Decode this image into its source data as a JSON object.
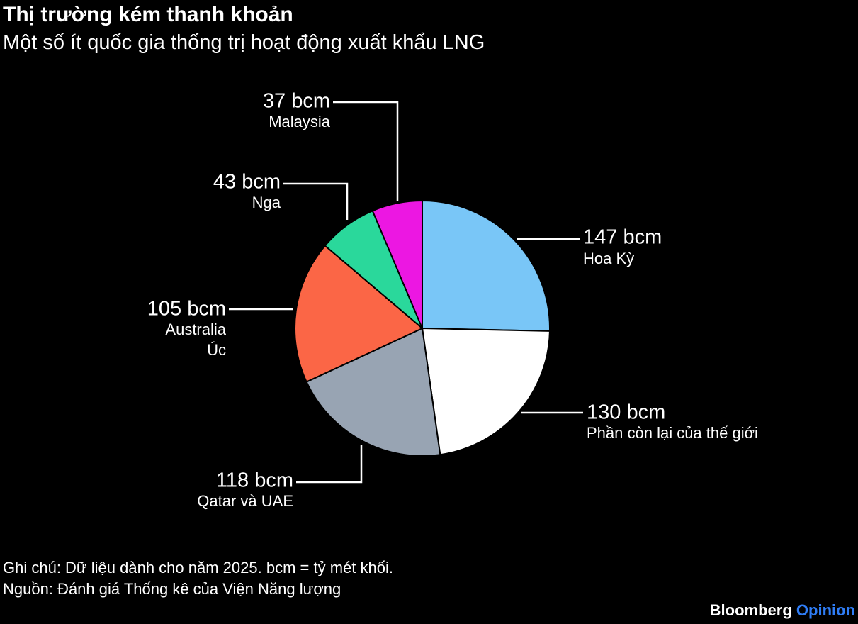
{
  "header": {
    "title": "Thị trường kém thanh khoản",
    "subtitle": "Một số ít quốc gia thống trị hoạt động xuất khẩu LNG"
  },
  "chart_data": {
    "type": "pie",
    "title": "Thị trường kém thanh khoản",
    "subtitle": "Một số ít quốc gia thống trị hoạt động xuất khẩu LNG",
    "unit": "bcm",
    "slices": [
      {
        "name": "Hoa Kỳ",
        "value": 147,
        "label": "147 bcm",
        "names": [
          "Hoa Kỳ"
        ],
        "color": "#79c6f7"
      },
      {
        "name": "Phần còn lại của thế giới",
        "value": 130,
        "label": "130 bcm",
        "names": [
          "Phần còn lại của thế giới"
        ],
        "color": "#ffffff"
      },
      {
        "name": "Qatar và UAE",
        "value": 118,
        "label": "118 bcm",
        "names": [
          "Qatar và UAE"
        ],
        "color": "#98a4b3"
      },
      {
        "name": "Australia Úc",
        "value": 105,
        "label": "105 bcm",
        "names": [
          "Australia",
          "Úc"
        ],
        "color": "#fb6646"
      },
      {
        "name": "Nga",
        "value": 43,
        "label": "43 bcm",
        "names": [
          "Nga"
        ],
        "color": "#2ad89b"
      },
      {
        "name": "Malaysia",
        "value": 37,
        "label": "37 bcm",
        "names": [
          "Malaysia"
        ],
        "color": "#ec17e2"
      }
    ]
  },
  "footer": {
    "note": "Ghi chú: Dữ liệu dành cho năm 2025. bcm = tỷ mét khối.",
    "source": "Nguồn: Đánh giá Thống kê của Viện Năng lượng",
    "brand_main": "Bloomberg",
    "brand_sub": "Opinion"
  }
}
